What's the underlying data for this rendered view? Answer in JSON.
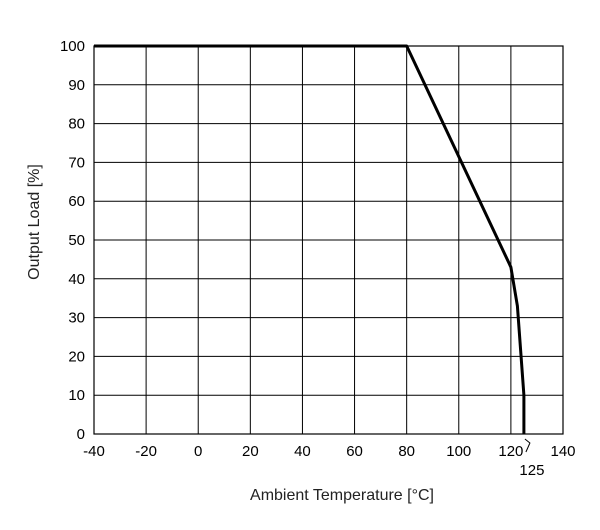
{
  "chart_data": {
    "type": "line",
    "title": "",
    "xlabel": "Ambient Temperature [°C]",
    "ylabel": "Output Load [%]",
    "xlim": [
      -40,
      140
    ],
    "ylim": [
      0,
      100
    ],
    "x_ticks": [
      "-40",
      "-20",
      "0",
      "20",
      "40",
      "60",
      "80",
      "100",
      "120",
      "140"
    ],
    "y_ticks": [
      "0",
      "10",
      "20",
      "30",
      "40",
      "50",
      "60",
      "70",
      "80",
      "90",
      "100"
    ],
    "extra_x_tick": {
      "value": 125,
      "label": "125"
    },
    "grid": true,
    "legend": "none",
    "line_color": "#000000",
    "series": [
      {
        "x": [
          -40,
          80,
          120,
          122.5,
          125,
          125
        ],
        "y": [
          100,
          100,
          43,
          33,
          10,
          0
        ]
      }
    ]
  }
}
